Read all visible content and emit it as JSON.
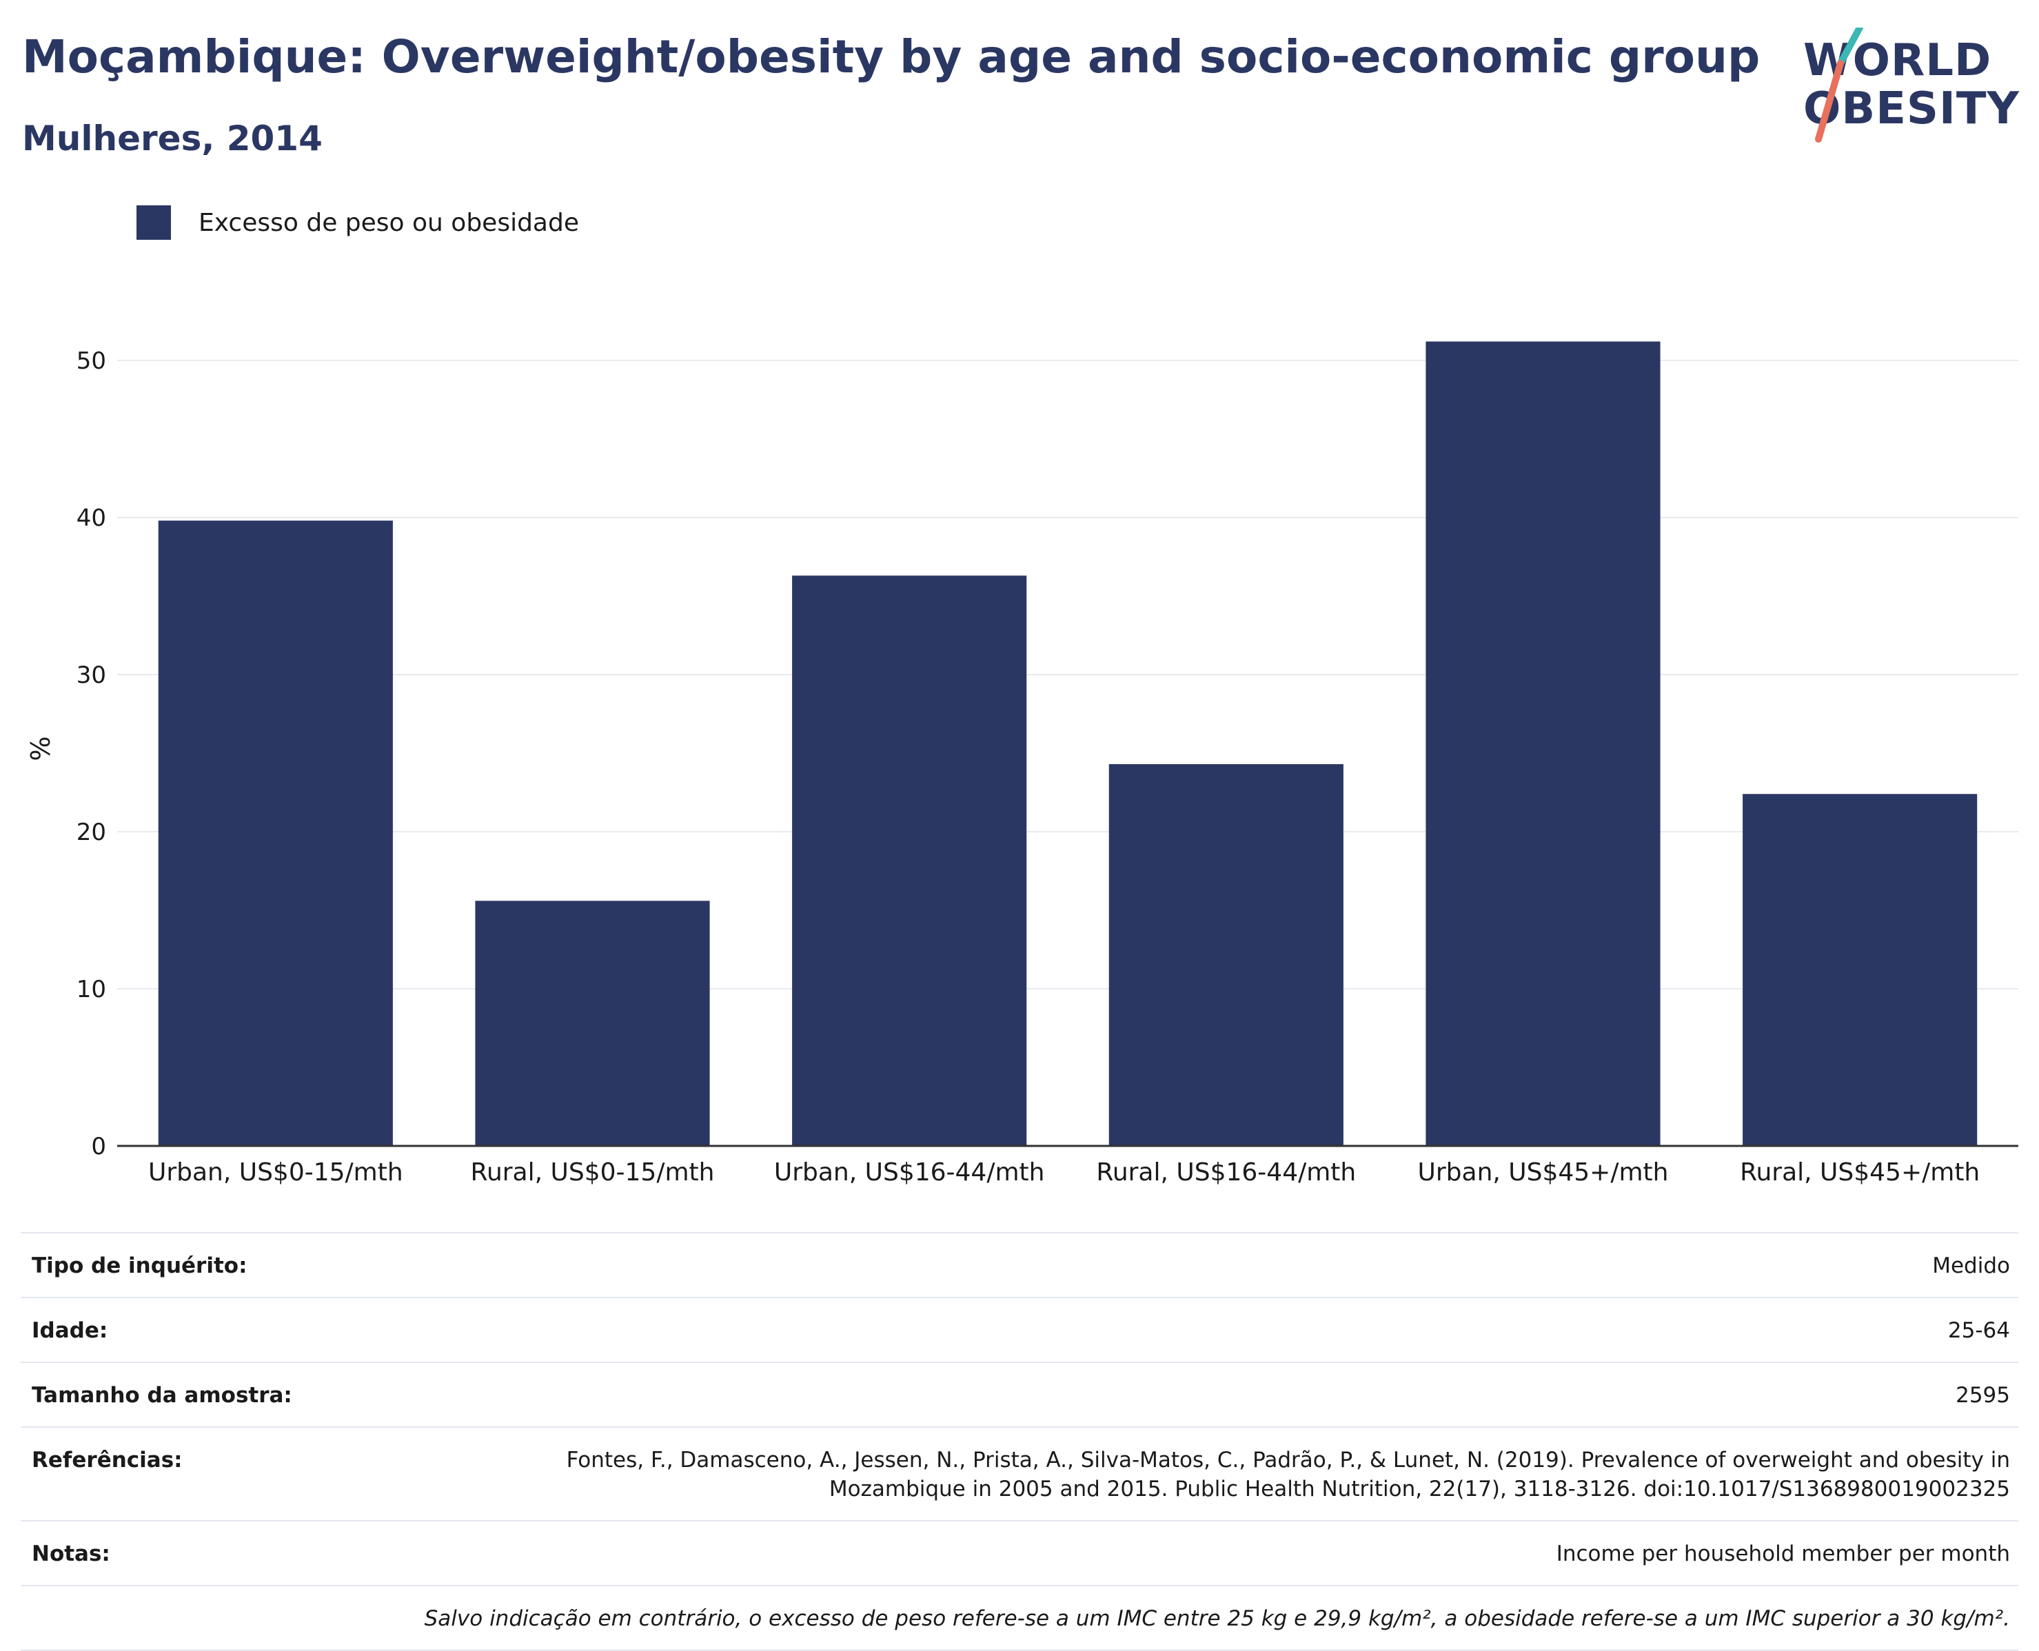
{
  "header": {
    "title": "Moçambique: Overweight/obesity by age and socio-economic group",
    "subtitle": "Mulheres, 2014"
  },
  "logo": {
    "line1": "WORLD",
    "line2": "OBESITY",
    "accent_teal": "#3bb8b3",
    "accent_coral": "#e8705c"
  },
  "legend": {
    "label": "Excesso de peso ou obesidade"
  },
  "colors": {
    "bar": "#2b3763",
    "grid": "#e8eaf0",
    "axis": "#333333"
  },
  "chart_data": {
    "type": "bar",
    "categories": [
      "Urban, US$0-15/mth",
      "Rural, US$0-15/mth",
      "Urban, US$16-44/mth",
      "Rural, US$16-44/mth",
      "Urban, US$45+/mth",
      "Rural, US$45+/mth"
    ],
    "series": [
      {
        "name": "Excesso de peso ou obesidade",
        "values": [
          39.8,
          15.6,
          36.3,
          24.3,
          51.2,
          22.4
        ]
      }
    ],
    "ylabel": "%",
    "yticks": [
      0,
      10,
      20,
      30,
      40,
      50
    ],
    "ylim": [
      0,
      60
    ],
    "grid": true,
    "legend_position": "top-left"
  },
  "info": {
    "rows": [
      {
        "key": "Tipo de inquérito:",
        "value": "Medido"
      },
      {
        "key": "Idade:",
        "value": "25-64"
      },
      {
        "key": "Tamanho da amostra:",
        "value": "2595"
      },
      {
        "key": "Referências:",
        "value": "Fontes, F., Damasceno, A., Jessen, N., Prista, A., Silva-Matos, C., Padrão, P., & Lunet, N. (2019). Prevalence of overweight and obesity in Mozambique in 2005 and 2015. Public Health Nutrition, 22(17), 3118-3126. doi:10.1017/S1368980019002325"
      },
      {
        "key": "Notas:",
        "value": "Income per household member per month"
      }
    ],
    "footnote": "Salvo indicação em contrário, o excesso de peso refere-se a um IMC entre 25 kg e 29,9 kg/m², a obesidade refere-se a um IMC superior a 30 kg/m²."
  }
}
